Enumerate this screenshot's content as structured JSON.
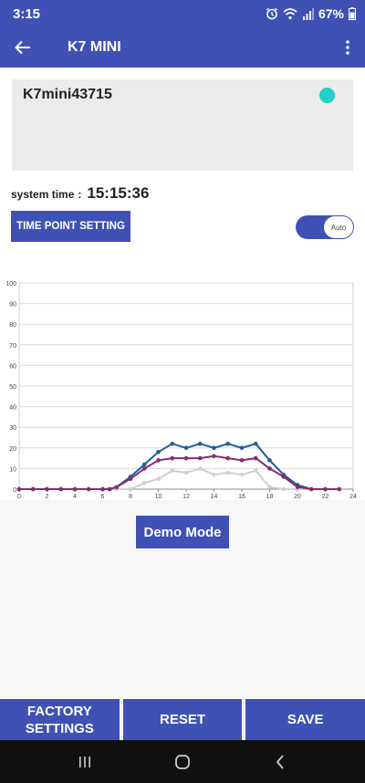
{
  "status_bar": {
    "time": "3:15",
    "battery": "67%",
    "icons": [
      "alarm-icon",
      "wifi-icon",
      "signal-icon",
      "battery-icon"
    ]
  },
  "app_bar": {
    "title": "K7 MINI",
    "icons": [
      "back-arrow-icon",
      "overflow-menu-icon"
    ]
  },
  "device": {
    "name": "K7mini43715",
    "status_color": "#1fd1c8"
  },
  "system_time": {
    "label": "system time",
    "separator": ":",
    "value": "15:15:36"
  },
  "time_point_button": "TIME POINT SETTING",
  "auto_toggle": {
    "label": "Auto",
    "on": true
  },
  "demo_button": "Demo Mode",
  "bottom_buttons": {
    "factory": "FACTORY\nSETTINGS",
    "reset": "RESET",
    "save": "SAVE"
  },
  "nav_icons": [
    "recent-apps-icon",
    "home-icon",
    "back-icon"
  ],
  "colors": {
    "primary": "#3f51b5"
  },
  "chart_data": {
    "type": "line",
    "xlim": [
      0,
      24
    ],
    "ylim": [
      0,
      100
    ],
    "x_ticks": [
      0,
      2,
      4,
      6,
      8,
      10,
      12,
      14,
      16,
      18,
      20,
      22,
      24
    ],
    "y_ticks": [
      0,
      10,
      20,
      30,
      40,
      50,
      60,
      70,
      80,
      90,
      100
    ],
    "grid": true,
    "x": [
      0,
      1,
      2,
      3,
      4,
      5,
      6,
      6.5,
      7,
      8,
      9,
      10,
      11,
      12,
      13,
      14,
      15,
      16,
      17,
      18,
      19,
      20,
      21,
      22,
      23
    ],
    "series": [
      {
        "color": "#d0d0d0",
        "values": [
          0,
          0,
          0,
          0,
          0,
          0,
          0,
          0,
          0,
          0,
          3,
          5,
          9,
          8,
          10,
          7,
          8,
          7,
          9,
          1,
          0,
          0,
          0,
          0,
          0
        ]
      },
      {
        "color": "#1f5f99",
        "values": [
          0,
          0,
          0,
          0,
          0,
          0,
          0,
          0,
          1,
          6,
          12,
          18,
          22,
          20,
          22,
          20,
          22,
          20,
          22,
          14,
          7,
          2,
          0,
          0,
          0
        ]
      },
      {
        "color": "#8b2a6f",
        "values": [
          0,
          0,
          0,
          0,
          0,
          0,
          0,
          0,
          1,
          5,
          10,
          14,
          15,
          15,
          15,
          16,
          15,
          14,
          15,
          10,
          6,
          1,
          0,
          0,
          0
        ]
      }
    ]
  }
}
